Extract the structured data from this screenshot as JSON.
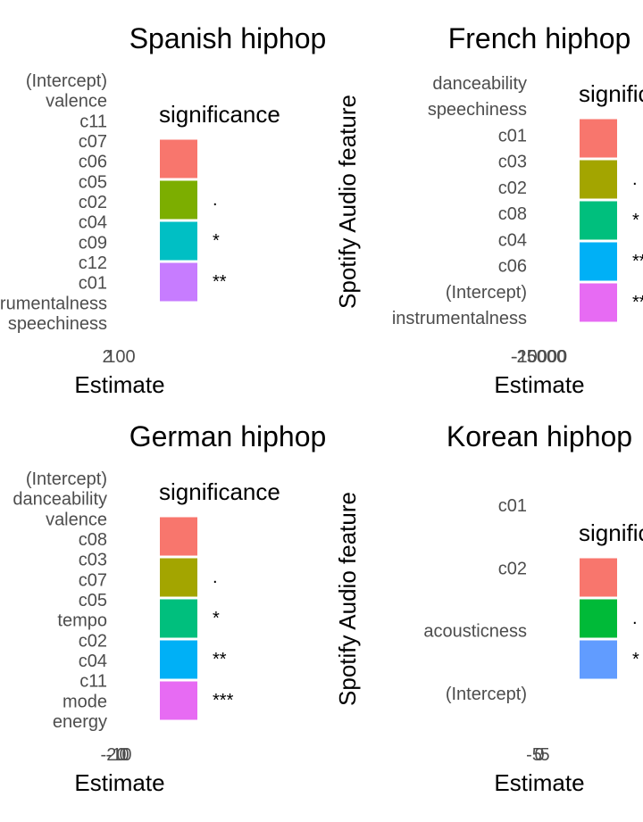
{
  "chart_data": [
    {
      "type": "bar",
      "orientation": "horizontal",
      "title": "Spanish hiphop",
      "ylabel": "",
      "xlabel": "Estimate",
      "x_tick_labels": [
        "2",
        "100"
      ],
      "categories": [
        "(Intercept)",
        "valence",
        "c11",
        "c07",
        "c06",
        "c05",
        "c02",
        "c04",
        "c09",
        "c12",
        "c01",
        "instrumentalness",
        "speechiness"
      ],
      "legend": {
        "title": "significance",
        "entries": [
          {
            "label": "",
            "color": "#F8766D"
          },
          {
            "label": ".",
            "color": "#7CAE00"
          },
          {
            "label": "*",
            "color": "#00BFC4"
          },
          {
            "label": "**",
            "color": "#C77CFF"
          }
        ]
      }
    },
    {
      "type": "bar",
      "orientation": "horizontal",
      "title": "French hiphop",
      "ylabel": "Spotify Audio feature",
      "xlabel": "Estimate",
      "x_tick_labels": [
        "-25000",
        "-10000"
      ],
      "categories": [
        "danceability",
        "speechiness",
        "c01",
        "c03",
        "c02",
        "c08",
        "c04",
        "c06",
        "(Intercept)",
        "instrumentalness"
      ],
      "legend": {
        "title": "significance",
        "entries": [
          {
            "label": "",
            "color": "#F8766D"
          },
          {
            "label": ".",
            "color": "#A3A500"
          },
          {
            "label": "*",
            "color": "#00BF7D"
          },
          {
            "label": "**",
            "color": "#00B0F6"
          },
          {
            "label": "***",
            "color": "#E76BF3"
          }
        ]
      }
    },
    {
      "type": "bar",
      "orientation": "horizontal",
      "title": "German hiphop",
      "ylabel": "",
      "xlabel": "Estimate",
      "x_tick_labels": [
        "-20",
        "-10",
        "0"
      ],
      "categories": [
        "(Intercept)",
        "danceability",
        "valence",
        "c08",
        "c03",
        "c07",
        "c05",
        "tempo",
        "c02",
        "c04",
        "c11",
        "mode",
        "energy"
      ],
      "legend": {
        "title": "significance",
        "entries": [
          {
            "label": "",
            "color": "#F8766D"
          },
          {
            "label": ".",
            "color": "#A3A500"
          },
          {
            "label": "*",
            "color": "#00BF7D"
          },
          {
            "label": "**",
            "color": "#00B0F6"
          },
          {
            "label": "***",
            "color": "#E76BF3"
          }
        ]
      }
    },
    {
      "type": "bar",
      "orientation": "horizontal",
      "title": "Korean hiphop",
      "ylabel": "Spotify Audio feature",
      "xlabel": "Estimate",
      "x_tick_labels": [
        "-5",
        "0",
        "5"
      ],
      "categories": [
        "c01",
        "c02",
        "acousticness",
        "(Intercept)"
      ],
      "legend": {
        "title": "significance",
        "entries": [
          {
            "label": "",
            "color": "#F8766D"
          },
          {
            "label": ".",
            "color": "#00BA38"
          },
          {
            "label": "*",
            "color": "#619CFF"
          }
        ]
      }
    }
  ]
}
